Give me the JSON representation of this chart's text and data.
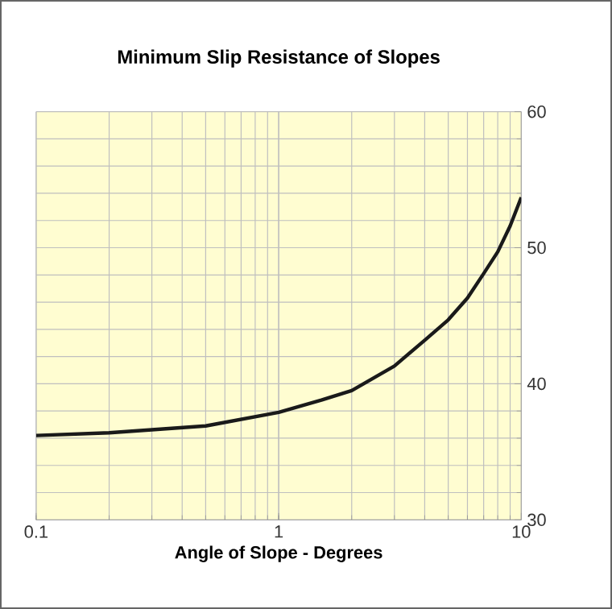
{
  "chart_data": {
    "type": "line",
    "title": "Minimum Slip Resistance of Slopes",
    "xlabel": "Angle of Slope - Degrees",
    "x": [
      0.1,
      0.2,
      0.5,
      1,
      1.5,
      2,
      3,
      4,
      5,
      6,
      7,
      8,
      9,
      10
    ],
    "series": [
      {
        "color": "#1a1a1a",
        "values": [
          36.2,
          36.4,
          36.9,
          37.9,
          38.8,
          39.5,
          41.3,
          43.2,
          44.7,
          46.3,
          48.1,
          49.7,
          51.6,
          53.7
        ]
      }
    ],
    "log": "x",
    "xlim": [
      0.1,
      10
    ],
    "xticks": [
      0.1,
      1,
      10
    ],
    "ylim": [
      30,
      60
    ],
    "yticks": [
      30,
      40,
      50,
      60
    ],
    "grid": true,
    "marker": "none",
    "line_style": "solid"
  }
}
